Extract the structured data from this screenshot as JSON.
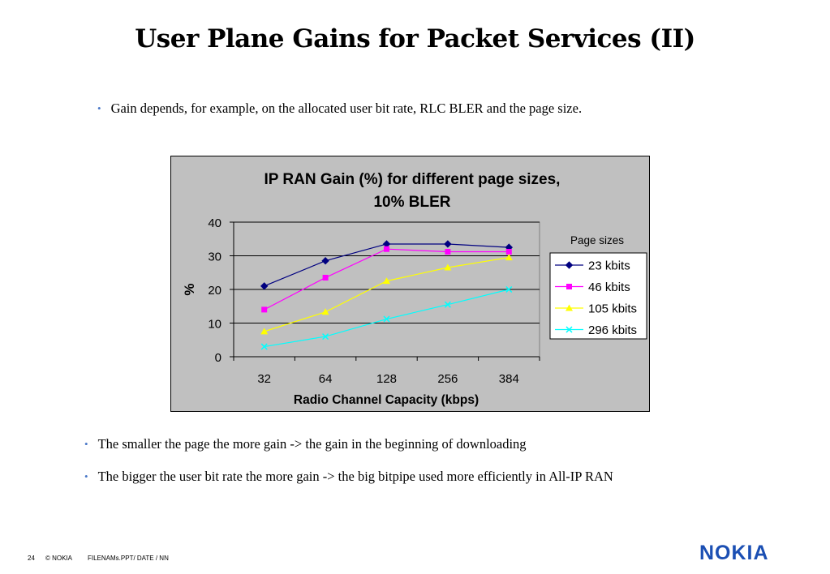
{
  "slide": {
    "title": "User Plane Gains for Packet Services (II)",
    "bullets_top": [
      "Gain depends, for example, on the allocated user bit rate, RLC BLER and the page size."
    ],
    "bullets_bottom": [
      "The smaller the page the more gain -> the gain in the beginning of downloading",
      "The bigger the user bit rate the more gain -> the big bitpipe used more efficiently in All-IP RAN"
    ],
    "bullet_color": "#4a78c8"
  },
  "footer": {
    "page_number": "24",
    "copyright": "© NOKIA",
    "file": "FILENAMs.PPT/ DATE / NN",
    "logo": "NOKIA",
    "logo_color": "#1b4fb3"
  },
  "chart_data": {
    "type": "line",
    "title_lines": [
      "IP RAN Gain (%) for different page sizes,",
      "10% BLER"
    ],
    "xlabel": "Radio Channel Capacity (kbps)",
    "ylabel": "%",
    "categories": [
      "32",
      "64",
      "128",
      "256",
      "384"
    ],
    "ylim": [
      0,
      40
    ],
    "yticks": [
      0,
      10,
      20,
      30,
      40
    ],
    "grid": true,
    "legend_title": "Page sizes",
    "legend_position": "right",
    "series": [
      {
        "name": "23 kbits",
        "values": [
          21,
          28.5,
          33.5,
          33.5,
          32.5
        ],
        "color": "#000080",
        "marker": "diamond"
      },
      {
        "name": "46 kbits",
        "values": [
          14,
          23.5,
          32,
          31.2,
          31.2
        ],
        "color": "#ff00ff",
        "marker": "square"
      },
      {
        "name": "105 kbits",
        "values": [
          7.5,
          13.3,
          22.5,
          26.5,
          29.5
        ],
        "color": "#ffff00",
        "marker": "triangle"
      },
      {
        "name": "296 kbits",
        "values": [
          3,
          6,
          11.2,
          15.5,
          20
        ],
        "color": "#00ffff",
        "marker": "x"
      }
    ]
  }
}
